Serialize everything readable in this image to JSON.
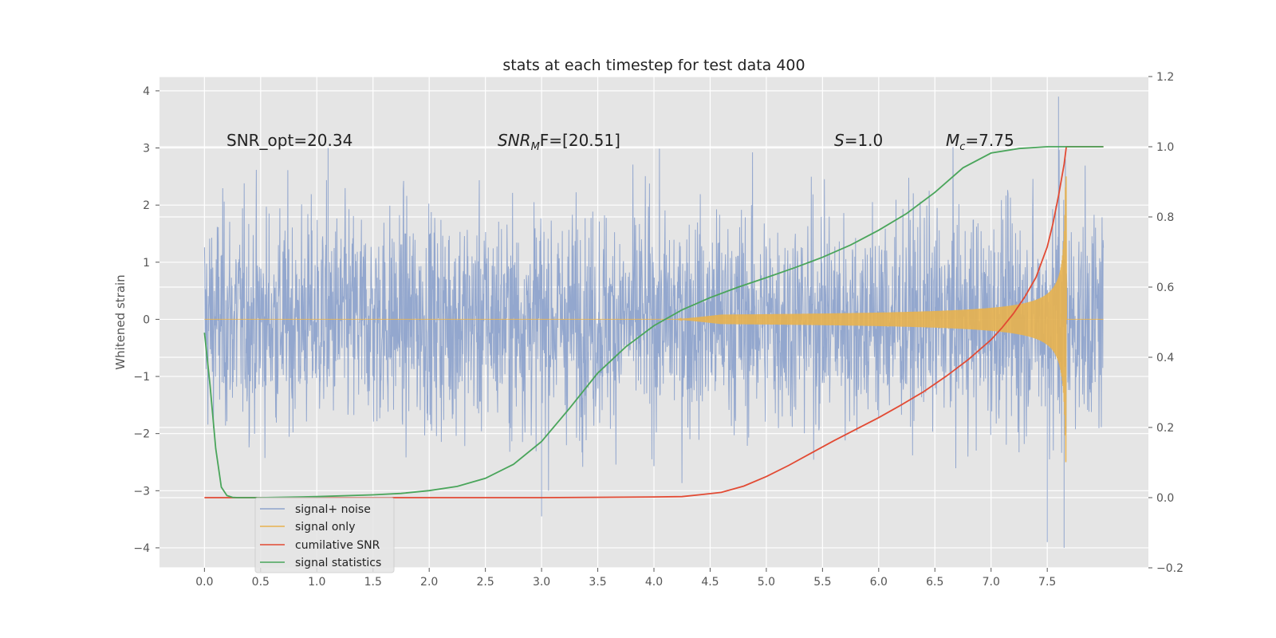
{
  "chart_data": {
    "type": "line",
    "title": "stats at each timestep for test data 400",
    "ylabel": "Whitened strain",
    "xlim": [
      -0.4,
      8.4
    ],
    "ylim_left": [
      -4.35,
      4.25
    ],
    "ylim_right": [
      -0.2,
      1.2
    ],
    "x_ticks": [
      0.0,
      0.5,
      1.0,
      1.5,
      2.0,
      2.5,
      3.0,
      3.5,
      4.0,
      4.5,
      5.0,
      5.5,
      6.0,
      6.5,
      7.0,
      7.5
    ],
    "x_tick_labels": [
      "0.0",
      "0.5",
      "1.0",
      "1.5",
      "2.0",
      "2.5",
      "3.0",
      "3.5",
      "4.0",
      "4.5",
      "5.0",
      "5.5",
      "6.0",
      "6.5",
      "7.0",
      "7.5"
    ],
    "y_left_ticks": [
      -4,
      -3,
      -2,
      -1,
      0,
      1,
      2,
      3,
      4
    ],
    "y_left_tick_labels": [
      "−4",
      "−3",
      "−2",
      "−1",
      "0",
      "1",
      "2",
      "3",
      "4"
    ],
    "y_right_ticks": [
      -0.2,
      0.0,
      0.2,
      0.4,
      0.6,
      0.8,
      1.0,
      1.2
    ],
    "y_right_tick_labels": [
      "−0.2",
      "0.0",
      "0.2",
      "0.4",
      "0.6",
      "0.8",
      "1.0",
      "1.2"
    ],
    "grid": true,
    "legend_position": "lower-left",
    "annotations": [
      {
        "text": "SNR_opt=20.34",
        "x": 0.2,
        "y": 3.05
      },
      {
        "text": "SNR_MF=[20.51]",
        "x": 2.6,
        "y": 3.05
      },
      {
        "text": "S=1.0",
        "x": 5.6,
        "y": 3.05
      },
      {
        "text": "M_c=7.75",
        "x": 6.6,
        "y": 3.05
      }
    ],
    "series": [
      {
        "name": "signal+ noise",
        "axis": "left",
        "color": "#8ea3cc",
        "description_fields": {
          "noise_sigma": 1.0,
          "merger_time": 7.67,
          "end_time": 8.0
        },
        "peaks": [
          [
            1.1,
            3.0
          ],
          [
            7.6,
            3.9
          ],
          [
            7.65,
            -4.0
          ],
          [
            7.5,
            -3.9
          ],
          [
            3.0,
            -3.45
          ]
        ]
      },
      {
        "name": "signal only",
        "axis": "left",
        "color": "#e8b24f",
        "chirp": {
          "start": 4.2,
          "merger": 7.67,
          "peak_amplitude": 2.5
        }
      },
      {
        "name": "cumilative SNR",
        "axis": "right",
        "color": "#e24a33",
        "x": [
          0.0,
          1.0,
          2.0,
          3.0,
          4.0,
          4.25,
          4.4,
          4.6,
          4.8,
          5.0,
          5.2,
          5.4,
          5.6,
          5.8,
          6.0,
          6.2,
          6.4,
          6.6,
          6.8,
          7.0,
          7.1,
          7.2,
          7.3,
          7.4,
          7.5,
          7.55,
          7.6,
          7.65,
          7.67,
          7.75,
          8.0
        ],
        "y": [
          0.0,
          0.0,
          0.0,
          0.0,
          0.002,
          0.003,
          0.008,
          0.015,
          0.033,
          0.06,
          0.092,
          0.127,
          0.162,
          0.195,
          0.228,
          0.264,
          0.302,
          0.346,
          0.394,
          0.45,
          0.485,
          0.525,
          0.572,
          0.628,
          0.715,
          0.78,
          0.86,
          0.95,
          1.0,
          1.0,
          1.0
        ]
      },
      {
        "name": "signal statistics",
        "axis": "right",
        "color": "#4aa55b",
        "x": [
          0.0,
          0.05,
          0.1,
          0.15,
          0.2,
          0.25,
          0.3,
          0.5,
          1.0,
          1.5,
          1.75,
          2.0,
          2.25,
          2.5,
          2.75,
          3.0,
          3.25,
          3.5,
          3.75,
          4.0,
          4.25,
          4.5,
          4.75,
          5.0,
          5.25,
          5.5,
          5.75,
          6.0,
          6.25,
          6.5,
          6.75,
          7.0,
          7.25,
          7.5,
          7.75,
          8.0
        ],
        "y": [
          0.47,
          0.32,
          0.14,
          0.03,
          0.006,
          0.001,
          0.0,
          0.0,
          0.003,
          0.008,
          0.012,
          0.02,
          0.032,
          0.055,
          0.095,
          0.16,
          0.255,
          0.355,
          0.43,
          0.49,
          0.535,
          0.57,
          0.6,
          0.627,
          0.655,
          0.685,
          0.72,
          0.762,
          0.81,
          0.87,
          0.94,
          0.982,
          0.995,
          1.0,
          1.0,
          1.0
        ]
      }
    ]
  }
}
